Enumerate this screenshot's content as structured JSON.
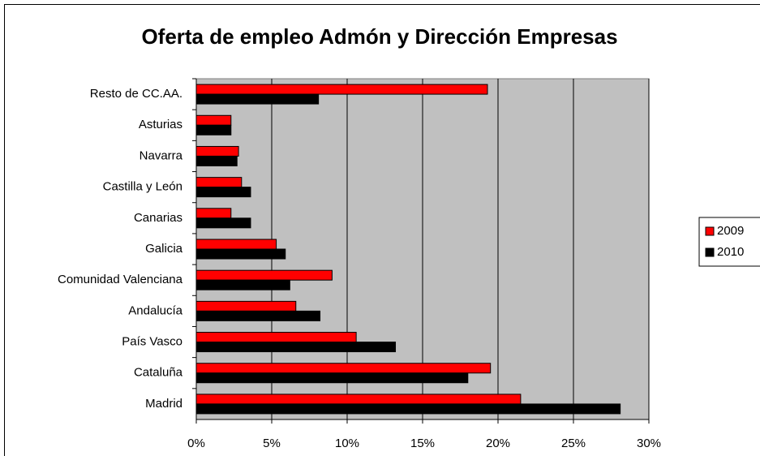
{
  "chart_data": {
    "type": "barh",
    "title": "Oferta de empleo Admón y Dirección Empresas",
    "categories": [
      "Resto de CC.AA.",
      "Asturias",
      "Navarra",
      "Castilla y León",
      "Canarias",
      "Galicia",
      "Comunidad Valenciana",
      "Andalucía",
      "País Vasco",
      "Cataluña",
      "Madrid"
    ],
    "series": [
      {
        "name": "2009",
        "color": "#ff0000",
        "values": [
          19.3,
          2.3,
          2.8,
          3.0,
          2.3,
          5.3,
          9.0,
          6.6,
          10.6,
          19.5,
          21.5
        ]
      },
      {
        "name": "2010",
        "color": "#000000",
        "values": [
          8.1,
          2.3,
          2.7,
          3.6,
          3.6,
          5.9,
          6.2,
          8.2,
          13.2,
          18.0,
          28.1
        ]
      }
    ],
    "xlim": [
      0,
      30
    ],
    "xticks": [
      {
        "value": 0,
        "label": "0%"
      },
      {
        "value": 5,
        "label": "5%"
      },
      {
        "value": 10,
        "label": "10%"
      },
      {
        "value": 15,
        "label": "15%"
      },
      {
        "value": 20,
        "label": "20%"
      },
      {
        "value": 25,
        "label": "25%"
      },
      {
        "value": 30,
        "label": "30%"
      }
    ],
    "grid": true,
    "legend": "right"
  }
}
